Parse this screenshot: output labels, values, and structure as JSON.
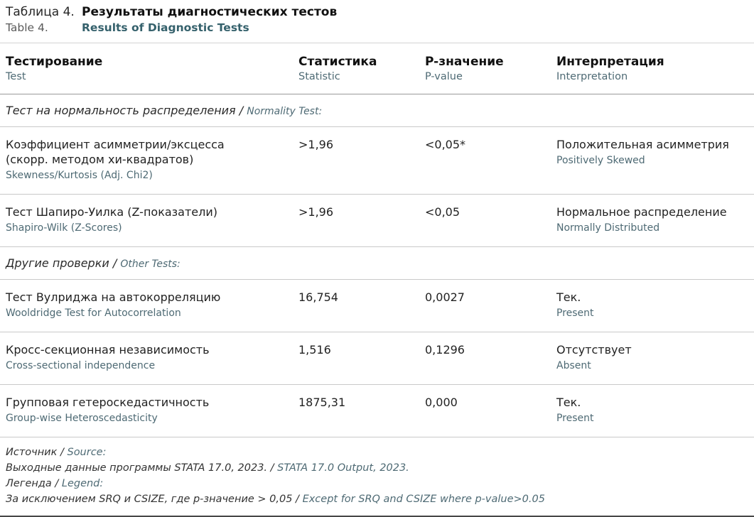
{
  "title": {
    "ru_prefix": "Таблица 4.",
    "ru_main": "Результаты диагностических тестов",
    "en_prefix": "Table 4.",
    "en_main": "Results of Diagnostic Tests"
  },
  "columns": [
    {
      "ru": "Тестирование",
      "en": "Test"
    },
    {
      "ru": "Статистика",
      "en": "Statistic"
    },
    {
      "ru": "P-значение",
      "en": "P-value"
    },
    {
      "ru": "Интерпретация",
      "en": "Interpretation"
    }
  ],
  "sections": [
    {
      "header_ru": "Тест на нормальность распределения /",
      "header_en": "Normality Test:",
      "rows": [
        {
          "test_ru": "Коэффициент асимметрии/эксцесса (скорр. методом хи-квадратов)",
          "test_en": "Skewness/Kurtosis (Adj. Chi2)",
          "statistic": ">1,96",
          "p_value": "<0,05*",
          "interp_ru": "Положительная асимметрия",
          "interp_en": "Positively Skewed"
        },
        {
          "test_ru": "Тест Шапиро-Уилка (Z-показатели)",
          "test_en": "Shapiro-Wilk (Z-Scores)",
          "statistic": ">1,96",
          "p_value": "<0,05",
          "interp_ru": "Нормальное распределение",
          "interp_en": "Normally Distributed"
        }
      ]
    },
    {
      "header_ru": "Другие проверки /",
      "header_en": "Other Tests:",
      "rows": [
        {
          "test_ru": "Тест Вулриджа на автокорреляцию",
          "test_en": "Wooldridge Test for Autocorrelation",
          "statistic": "16,754",
          "p_value": "0,0027",
          "interp_ru": "Тек.",
          "interp_en": "Present"
        },
        {
          "test_ru": "Кросс-секционная независимость",
          "test_en": "Cross-sectional independence",
          "statistic": "1,516",
          "p_value": "0,1296",
          "interp_ru": "Отсутствует",
          "interp_en": "Absent"
        },
        {
          "test_ru": "Групповая гетероскедастичность",
          "test_en": "Group-wise Heteroscedasticity",
          "statistic": "1875,31",
          "p_value": "0,000",
          "interp_ru": "Тек.",
          "interp_en": "Present"
        }
      ]
    }
  ],
  "footer": {
    "lines": [
      {
        "ru": "Источник /",
        "en": "Source:"
      },
      {
        "ru": "Выходные данные программы STATA 17.0, 2023. /",
        "en": "STATA 17.0 Output, 2023."
      },
      {
        "ru": "Легенда /",
        "en": "Legend:"
      },
      {
        "ru": "За исключением SRQ и CSIZE, где p-значение > 0,05 /",
        "en": "Except for SRQ and CSIZE where p-value>0.05"
      }
    ]
  },
  "colors": {
    "text_primary": "#1d1d1d",
    "text_english": "#4e6a74",
    "title_english_bold": "#35616c",
    "rule_light": "#c9c9c9",
    "rule_header": "#9a9a9a",
    "rule_bottom": "#474747"
  }
}
